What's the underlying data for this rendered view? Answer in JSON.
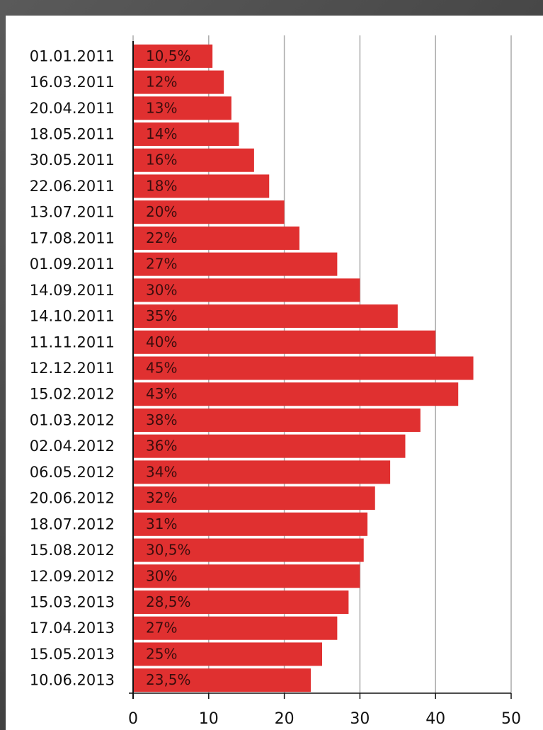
{
  "chart_data": {
    "type": "bar",
    "orientation": "horizontal",
    "color": "#e03030",
    "categories": [
      "01.01.2011",
      "16.03.2011",
      "20.04.2011",
      "18.05.2011",
      "30.05.2011",
      "22.06.2011",
      "13.07.2011",
      "17.08.2011",
      "01.09.2011",
      "14.09.2011",
      "14.10.2011",
      "11.11.2011",
      "12.12.2011",
      "15.02.2012",
      "01.03.2012",
      "02.04.2012",
      "06.05.2012",
      "20.06.2012",
      "18.07.2012",
      "15.08.2012",
      "12.09.2012",
      "15.03.2013",
      "17.04.2013",
      "15.05.2013",
      "10.06.2013"
    ],
    "values": [
      10.5,
      12,
      13,
      14,
      16,
      18,
      20,
      22,
      27,
      30,
      35,
      40,
      45,
      43,
      38,
      36,
      34,
      32,
      31,
      30.5,
      30,
      28.5,
      27,
      25,
      23.5
    ],
    "value_labels": [
      "10,5%",
      "12%",
      "13%",
      "14%",
      "16%",
      "18%",
      "20%",
      "22%",
      "27%",
      "30%",
      "35%",
      "40%",
      "45%",
      "43%",
      "38%",
      "36%",
      "34%",
      "32%",
      "31%",
      "30,5%",
      "30%",
      "28,5%",
      "27%",
      "25%",
      "23,5%"
    ],
    "xlim": [
      0,
      50
    ],
    "xticks": [
      0,
      10,
      20,
      30,
      40,
      50
    ],
    "grid": true
  }
}
